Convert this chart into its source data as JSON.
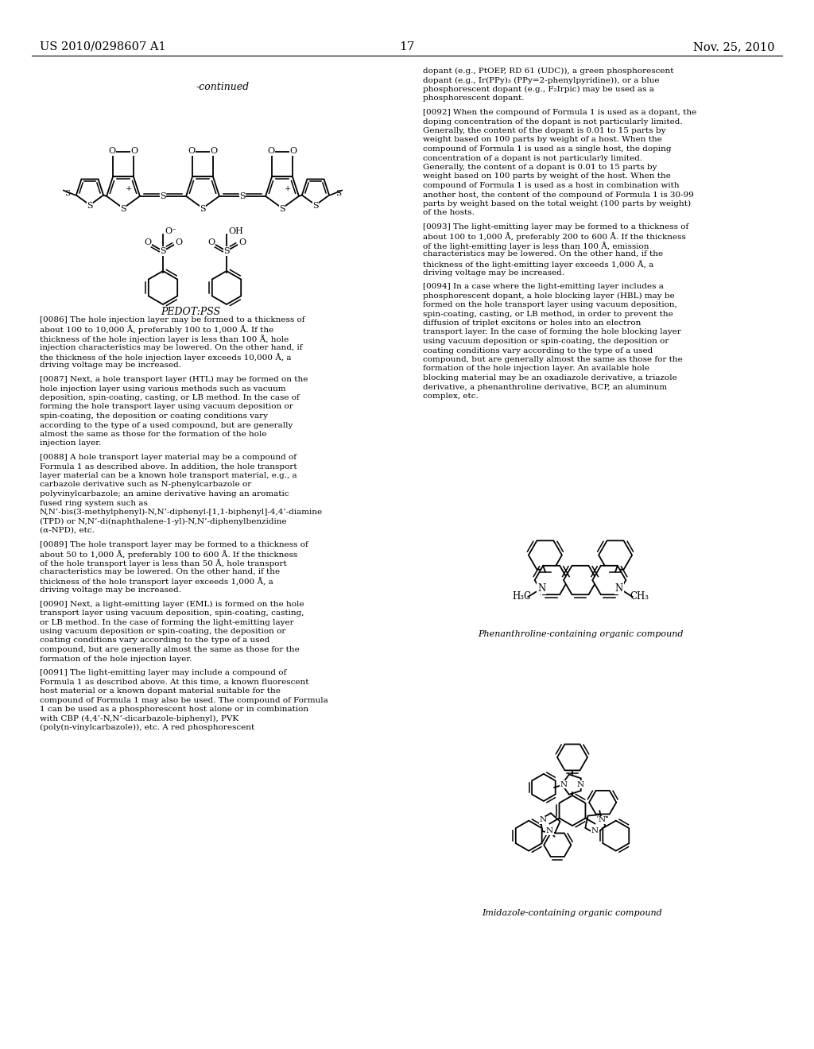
{
  "page_header_left": "US 2010/0298607 A1",
  "page_header_right": "Nov. 25, 2010",
  "page_number": "17",
  "continued_label": "-continued",
  "pedot_label": "PEDOT:PSS",
  "phenanthroline_label": "Phenanthroline-containing organic compound",
  "imidazole_label": "Imidazole-containing organic compound",
  "right_col_intro": "dopant (e.g., PtOEP, RD 61 (UDC)), a green phosphorescent dopant (e.g., Ir(PPy)₃ (PPy=2-phenylpyridine)), or a blue phosphorescent dopant (e.g., F₂Irpic) may be used as a phosphorescent dopant.",
  "left_paragraphs": [
    [
      "[0086]",
      "The hole injection layer may be formed to a thickness of about 100 to 10,000 Å, preferably 100 to 1,000 Å. If the thickness of the hole injection layer is less than 100 Å, hole injection characteristics may be lowered. On the other hand, if the thickness of the hole injection layer exceeds 10,000 Å, a driving voltage may be increased."
    ],
    [
      "[0087]",
      "Next, a hole transport layer (HTL) may be formed on the hole injection layer using various methods such as vacuum deposition, spin-coating, casting, or LB method. In the case of forming the hole transport layer using vacuum deposition or spin-coating, the deposition or coating conditions vary according to the type of a used compound, but are generally almost the same as those for the formation of the hole injection layer."
    ],
    [
      "[0088]",
      "A hole transport layer material may be a compound of Formula 1 as described above. In addition, the hole transport layer material can be a known hole transport material, e.g., a carbazole derivative such as N-phenylcarbazole or polyvinylcarbazole; an amine derivative having an aromatic fused ring system such as N,N’-bis(3-methylphenyl)-N,N’-diphenyl-[1,1-biphenyl]-4,4’-diamine (TPD) or N,N’-di(naphthalene-1-yl)-N,N’-diphenylbenzidine (α-NPD), etc."
    ],
    [
      "[0089]",
      "The hole transport layer may be formed to a thickness of about 50 to 1,000 Å, preferably 100 to 600 Å. If the thickness of the hole transport layer is less than 50 Å, hole transport characteristics may be lowered. On the other hand, if the thickness of the hole transport layer exceeds 1,000 Å, a driving voltage may be increased."
    ],
    [
      "[0090]",
      "Next, a light-emitting layer (EML) is formed on the hole transport layer using vacuum deposition, spin-coating, casting, or LB method. In the case of forming the light-emitting layer using vacuum deposition or spin-coating, the deposition or coating conditions vary according to the type of a used compound, but are generally almost the same as those for the formation of the hole injection layer."
    ],
    [
      "[0091]",
      "The light-emitting layer may include a compound of Formula 1 as described above. At this time, a known fluorescent host material or a known dopant material suitable for the compound of Formula 1 may also be used. The compound of Formula 1 can be used as a phosphorescent host alone or in combination with CBP (4,4’-N,N’-dicarbazole-biphenyl), PVK (poly(n-vinylcarbazole)), etc. A red phosphorescent"
    ]
  ],
  "right_paragraphs": [
    [
      "[0092]",
      "When the compound of Formula 1 is used as a dopant, the doping concentration of the dopant is not particularly limited. Generally, the content of the dopant is 0.01 to 15 parts by weight based on 100 parts by weight of a host. When the compound of Formula 1 is used as a single host, the doping concentration of a dopant is not particularly limited. Generally, the content of a dopant is 0.01 to 15 parts by weight based on 100 parts by weight of the host. When the compound of Formula 1 is used as a host in combination with another host, the content of the compound of Formula 1 is 30-99 parts by weight based on the total weight (100 parts by weight) of the hosts."
    ],
    [
      "[0093]",
      "The light-emitting layer may be formed to a thickness of about 100 to 1,000 Å, preferably 200 to 600 Å. If the thickness of the light-emitting layer is less than 100 Å, emission characteristics may be lowered. On the other hand, if the thickness of the light-emitting layer exceeds 1,000 Å, a driving voltage may be increased."
    ],
    [
      "[0094]",
      "In a case where the light-emitting layer includes a phosphorescent dopant, a hole blocking layer (HBL) may be formed on the hole transport layer using vacuum deposition, spin-coating, casting, or LB method, in order to prevent the diffusion of triplet excitons or holes into an electron transport layer. In the case of forming the hole blocking layer using vacuum deposition or spin-coating, the deposition or coating conditions vary according to the type of a used compound, but are generally almost the same as those for the formation of the hole injection layer. An available hole blocking material may be an oxadiazole derivative, a triazole derivative, a phenanthroline derivative, BCP, an aluminum complex, etc."
    ]
  ]
}
